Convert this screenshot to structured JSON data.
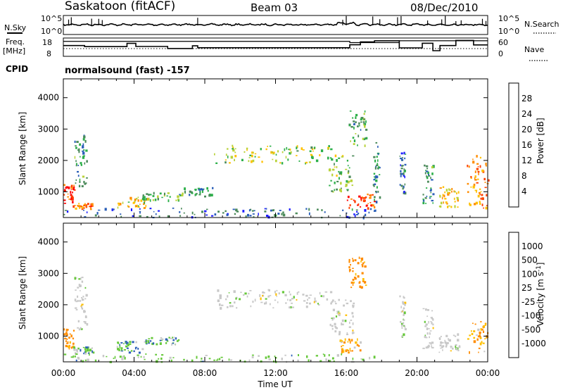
{
  "header": {
    "station": "Saskatoon (fitACF)",
    "beam": "Beam 03",
    "date": "08/Dec/2010"
  },
  "noise_panel": {
    "left_label": "N.Sky",
    "right_label": "N.Search",
    "left_ticks": [
      "10^5",
      "10^0"
    ],
    "right_ticks": [
      "10^5",
      "10^0"
    ]
  },
  "freq_panel": {
    "left_label_line1": "Freq.",
    "left_label_line2": "[MHz]",
    "right_label": "Nave",
    "left_ticks": [
      "18",
      "8"
    ],
    "right_ticks": [
      "60",
      "0"
    ],
    "freq_steps": [
      [
        0.0,
        14.5
      ],
      [
        1.2,
        13.8
      ],
      [
        3.6,
        15.9
      ],
      [
        4.1,
        13.9
      ],
      [
        5.9,
        12.6
      ],
      [
        7.3,
        14.3
      ],
      [
        7.6,
        13.1
      ],
      [
        16.2,
        15.0
      ],
      [
        16.8,
        16.8
      ],
      [
        17.6,
        17.6
      ],
      [
        19.0,
        13.0
      ],
      [
        20.3,
        16.0
      ],
      [
        20.9,
        11.2
      ],
      [
        21.3,
        14.5
      ],
      [
        22.2,
        17.8
      ],
      [
        23.2,
        14.9
      ],
      [
        24.0,
        14.9
      ]
    ]
  },
  "cpid": {
    "label": "CPID",
    "text": "normalsound (fast) -157"
  },
  "time_axis": {
    "label": "Time UT",
    "ticks": [
      "00:00",
      "04:00",
      "08:00",
      "12:00",
      "16:00",
      "20:00",
      "00:00"
    ]
  },
  "chart_data": [
    {
      "type": "heatmap",
      "title": "Power",
      "xlabel": "Time UT",
      "ylabel": "Slant Range [km]",
      "xlim": [
        0,
        24
      ],
      "ylim": [
        180,
        4600
      ],
      "yticks": [
        "1000",
        "2000",
        "3000",
        "4000"
      ],
      "colorbar": {
        "label": "Power [dB]",
        "ticks": [
          "4",
          "8",
          "12",
          "16",
          "20",
          "24",
          "28"
        ],
        "colors": [
          "#1e1eff",
          "#2b5fb8",
          "#4b8a5a",
          "#2db04a",
          "#b8d23a",
          "#ffc000",
          "#ff8c00",
          "#ff4000",
          "#ff0000"
        ]
      },
      "echo_regions": [
        {
          "t": [
            0.0,
            0.6
          ],
          "r": [
            650,
            1250
          ],
          "level": 27
        },
        {
          "t": [
            0.5,
            1.7
          ],
          "r": [
            460,
            650
          ],
          "level": 24
        },
        {
          "t": [
            0.6,
            1.3
          ],
          "r": [
            1200,
            2900
          ],
          "level": 10
        },
        {
          "t": [
            3.0,
            4.8
          ],
          "r": [
            500,
            850
          ],
          "level": 19
        },
        {
          "t": [
            4.4,
            6.8
          ],
          "r": [
            750,
            1000
          ],
          "level": 12
        },
        {
          "t": [
            6.8,
            8.4
          ],
          "r": [
            880,
            1150
          ],
          "level": 10
        },
        {
          "t": [
            8.5,
            15.2
          ],
          "r": [
            1900,
            2500
          ],
          "level": 15
        },
        {
          "t": [
            15.0,
            16.4
          ],
          "r": [
            1000,
            2200
          ],
          "level": 14
        },
        {
          "t": [
            16.0,
            17.6
          ],
          "r": [
            500,
            950
          ],
          "level": 28
        },
        {
          "t": [
            16.1,
            17.1
          ],
          "r": [
            2500,
            3600
          ],
          "level": 11
        },
        {
          "t": [
            17.5,
            17.9
          ],
          "r": [
            700,
            2600
          ],
          "level": 9
        },
        {
          "t": [
            19.0,
            19.3
          ],
          "r": [
            1000,
            2300
          ],
          "level": 7
        },
        {
          "t": [
            20.3,
            20.9
          ],
          "r": [
            600,
            1900
          ],
          "level": 10
        },
        {
          "t": [
            21.2,
            22.4
          ],
          "r": [
            500,
            1200
          ],
          "level": 19
        },
        {
          "t": [
            22.8,
            24.0
          ],
          "r": [
            500,
            2200
          ],
          "level": 23
        },
        {
          "t": [
            0.0,
            17.6
          ],
          "r": [
            200,
            500
          ],
          "level": 6
        }
      ]
    },
    {
      "type": "heatmap",
      "title": "Velocity",
      "xlabel": "Time UT",
      "ylabel": "Slant Range [km]",
      "xlim": [
        0,
        24
      ],
      "ylim": [
        180,
        4600
      ],
      "yticks": [
        "1000",
        "2000",
        "3000",
        "4000"
      ],
      "colorbar": {
        "label": "Velocity [m s-1]",
        "ticks": [
          "1000",
          "500",
          "100",
          "25",
          "-25",
          "-100",
          "-500",
          "-1000"
        ],
        "colors": [
          "#1e3cc8",
          "#2b5fb8",
          "#3d8a3d",
          "#66c83a",
          "#c8c8c8",
          "#ffc000",
          "#ff8c00",
          "#ff4000",
          "#ff0000"
        ]
      },
      "echo_regions": [
        {
          "t": [
            0.0,
            0.6
          ],
          "r": [
            650,
            1250
          ],
          "vel": -200
        },
        {
          "t": [
            0.5,
            1.7
          ],
          "r": [
            460,
            700
          ],
          "vel": 60
        },
        {
          "t": [
            0.6,
            1.3
          ],
          "r": [
            1200,
            2900
          ],
          "vel": 0
        },
        {
          "t": [
            3.0,
            4.8
          ],
          "r": [
            500,
            850
          ],
          "vel": 80
        },
        {
          "t": [
            4.4,
            6.8
          ],
          "r": [
            750,
            1000
          ],
          "vel": 70
        },
        {
          "t": [
            8.5,
            15.2
          ],
          "r": [
            1900,
            2500
          ],
          "vel": 0
        },
        {
          "t": [
            15.0,
            16.4
          ],
          "r": [
            1000,
            2200
          ],
          "vel": 0
        },
        {
          "t": [
            15.6,
            16.8
          ],
          "r": [
            500,
            950
          ],
          "vel": -80
        },
        {
          "t": [
            16.1,
            17.1
          ],
          "r": [
            2500,
            3600
          ],
          "vel": -200
        },
        {
          "t": [
            19.0,
            19.3
          ],
          "r": [
            1000,
            2300
          ],
          "vel": 0
        },
        {
          "t": [
            20.3,
            20.9
          ],
          "r": [
            600,
            1900
          ],
          "vel": 0
        },
        {
          "t": [
            21.2,
            22.4
          ],
          "r": [
            500,
            1200
          ],
          "vel": 0
        },
        {
          "t": [
            22.8,
            24.0
          ],
          "r": [
            500,
            1500
          ],
          "vel": -90
        },
        {
          "t": [
            0.0,
            17.6
          ],
          "r": [
            200,
            450
          ],
          "vel": 50
        }
      ]
    }
  ]
}
